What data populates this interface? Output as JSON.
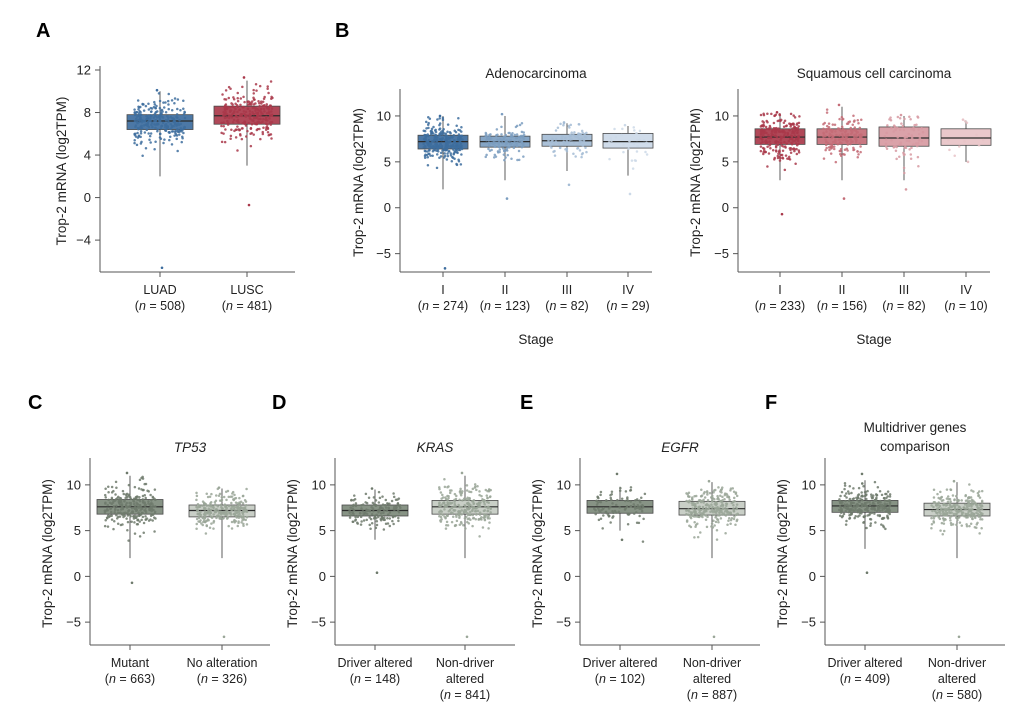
{
  "colors": {
    "luad": "#3d6d9e",
    "lusc": "#a9384a",
    "gray": "#7d8a7b",
    "gray_light": "#c4cbc2"
  },
  "panels": [
    {
      "letter": "A"
    },
    {
      "letter": "B"
    },
    {
      "letter": "C"
    },
    {
      "letter": "D"
    },
    {
      "letter": "E"
    },
    {
      "letter": "F"
    }
  ],
  "chart_data": [
    {
      "id": "A",
      "type": "box",
      "title": "",
      "ylabel": "Trop-2 mRNA (log2TPM)",
      "xlabel": "",
      "ylim": [
        -7,
        12
      ],
      "yticks": [
        -4,
        0,
        4,
        8,
        12
      ],
      "categories": [
        {
          "label": "LUAD",
          "n": "508",
          "color": "#3d6d9e",
          "q1": 6.4,
          "median": 7.2,
          "q3": 7.8,
          "lo": 2.0,
          "hi": 10.0,
          "min": -6.6,
          "max": 10.1
        },
        {
          "label": "LUSC",
          "n": "481",
          "color": "#a9384a",
          "q1": 6.9,
          "median": 7.7,
          "q3": 8.6,
          "lo": 3.0,
          "hi": 11.0,
          "min": -0.7,
          "max": 11.3
        }
      ]
    },
    {
      "id": "B1",
      "type": "box",
      "title": "Adenocarcinoma",
      "ylabel": "Trop-2 mRNA (log2TPM)",
      "xlabel": "Stage",
      "ylim": [
        -7,
        12.5
      ],
      "yticks": [
        -5,
        0,
        5,
        10
      ],
      "categories": [
        {
          "label": "I",
          "n": "274",
          "color": "#3d6d9e",
          "q1": 6.4,
          "median": 7.2,
          "q3": 7.9,
          "lo": 2.0,
          "hi": 10.0,
          "min": -6.6,
          "max": 10.0
        },
        {
          "label": "II",
          "n": "123",
          "color": "#7b9dc0",
          "q1": 6.6,
          "median": 7.2,
          "q3": 7.8,
          "lo": 3.0,
          "hi": 10.0,
          "min": 1.0,
          "max": 10.2
        },
        {
          "label": "III",
          "n": "82",
          "color": "#a4bcd5",
          "q1": 6.7,
          "median": 7.3,
          "q3": 8.0,
          "lo": 4.0,
          "hi": 9.2,
          "min": 2.5,
          "max": 9.3
        },
        {
          "label": "IV",
          "n": "29",
          "color": "#ccd9e8",
          "q1": 6.5,
          "median": 7.2,
          "q3": 8.1,
          "lo": 3.5,
          "hi": 8.9,
          "min": 1.5,
          "max": 9.0
        }
      ]
    },
    {
      "id": "B2",
      "type": "box",
      "title": "Squamous cell carcinoma",
      "ylabel": "Trop-2 mRNA (log2TPM)",
      "xlabel": "Stage",
      "ylim": [
        -7,
        12.5
      ],
      "yticks": [
        -5,
        0,
        5,
        10
      ],
      "categories": [
        {
          "label": "I",
          "n": "233",
          "color": "#a9384a",
          "q1": 6.9,
          "median": 7.7,
          "q3": 8.6,
          "lo": 3.0,
          "hi": 10.3,
          "min": -0.7,
          "max": 10.4
        },
        {
          "label": "II",
          "n": "156",
          "color": "#c46c77",
          "q1": 6.9,
          "median": 7.7,
          "q3": 8.6,
          "lo": 3.0,
          "hi": 11.0,
          "min": 1.0,
          "max": 11.2
        },
        {
          "label": "III",
          "n": "82",
          "color": "#d79aa2",
          "q1": 6.7,
          "median": 7.6,
          "q3": 8.8,
          "lo": 3.0,
          "hi": 10.0,
          "min": 2.0,
          "max": 10.1
        },
        {
          "label": "IV",
          "n": "10",
          "color": "#e8c3c7",
          "q1": 6.8,
          "median": 7.6,
          "q3": 8.6,
          "lo": 5.0,
          "hi": 9.5,
          "min": 5.0,
          "max": 9.6
        }
      ]
    },
    {
      "id": "C",
      "type": "box",
      "title": "TP53",
      "ylabel": "Trop-2 mRNA (log2TPM)",
      "xlabel": "",
      "ylim": [
        -7.5,
        12.5
      ],
      "yticks": [
        -5,
        0,
        5,
        10
      ],
      "categories": [
        {
          "label": "Mutant",
          "n": "663",
          "color": "#7d8a7b",
          "q1": 6.8,
          "median": 7.6,
          "q3": 8.4,
          "lo": 2.0,
          "hi": 11.0,
          "min": -0.7,
          "max": 11.3
        },
        {
          "label": "No alteration",
          "n": "326",
          "color": "#c4cbc2",
          "q1": 6.5,
          "median": 7.2,
          "q3": 7.8,
          "lo": 2.0,
          "hi": 9.6,
          "min": -6.6,
          "max": 9.7
        }
      ]
    },
    {
      "id": "D",
      "type": "box",
      "title": "KRAS",
      "ylabel": "Trop-2 mRNA (log2TPM)",
      "xlabel": "",
      "ylim": [
        -7.5,
        12.5
      ],
      "yticks": [
        -5,
        0,
        5,
        10
      ],
      "categories": [
        {
          "label": "Driver altered",
          "n": "148",
          "color": "#7d8a7b",
          "q1": 6.6,
          "median": 7.2,
          "q3": 7.8,
          "lo": 4.0,
          "hi": 9.5,
          "min": 0.4,
          "max": 9.6
        },
        {
          "label": "Non-driver altered",
          "n": "841",
          "color": "#c4cbc2",
          "q1": 6.8,
          "median": 7.6,
          "q3": 8.3,
          "lo": 2.0,
          "hi": 11.0,
          "min": -6.6,
          "max": 11.3
        }
      ]
    },
    {
      "id": "E",
      "type": "box",
      "title": "EGFR",
      "ylabel": "Trop-2 mRNA (log2TPM)",
      "xlabel": "",
      "ylim": [
        -7.5,
        12.5
      ],
      "yticks": [
        -5,
        0,
        5,
        10
      ],
      "categories": [
        {
          "label": "Driver altered",
          "n": "102",
          "color": "#7d8a7b",
          "q1": 6.9,
          "median": 7.6,
          "q3": 8.3,
          "lo": 5.0,
          "hi": 9.8,
          "min": 4.0,
          "max": 11.2
        },
        {
          "label": "Non-driver altered",
          "n": "887",
          "color": "#c4cbc2",
          "q1": 6.7,
          "median": 7.4,
          "q3": 8.2,
          "lo": 2.0,
          "hi": 10.3,
          "min": -6.6,
          "max": 10.4
        }
      ]
    },
    {
      "id": "F",
      "type": "box",
      "title": "Multidriver genes comparison",
      "ylabel": "Trop-2 mRNA (log2TPM)",
      "xlabel": "",
      "ylim": [
        -7.5,
        12.5
      ],
      "yticks": [
        -5,
        0,
        5,
        10
      ],
      "categories": [
        {
          "label": "Driver altered",
          "n": "409",
          "color": "#7d8a7b",
          "q1": 7.0,
          "median": 7.7,
          "q3": 8.3,
          "lo": 3.0,
          "hi": 10.5,
          "min": 0.4,
          "max": 11.2
        },
        {
          "label": "Non-driver altered",
          "n": "580",
          "color": "#c4cbc2",
          "q1": 6.6,
          "median": 7.3,
          "q3": 8.0,
          "lo": 2.0,
          "hi": 10.3,
          "min": -6.6,
          "max": 10.4
        }
      ]
    }
  ]
}
